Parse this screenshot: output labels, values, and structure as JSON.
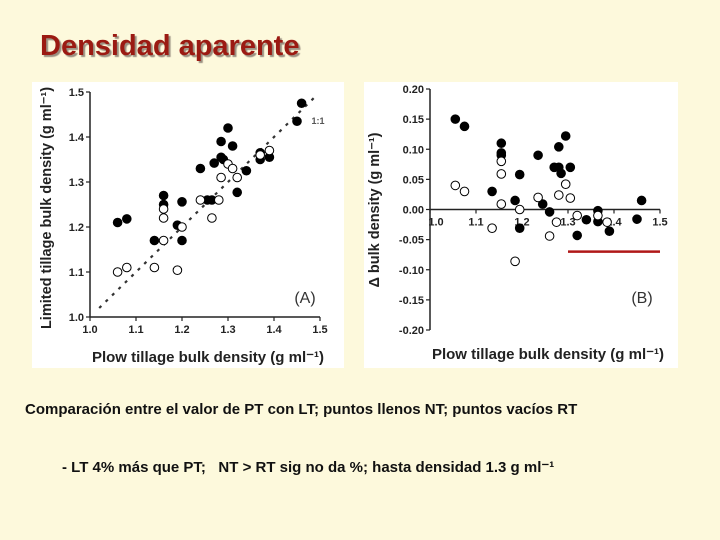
{
  "slide": {
    "title": "Densidad aparente",
    "caption_line1": "Comparación entre el valor de PT con LT; puntos llenos NT; puntos vacíos RT",
    "caption_line2": "- LT 4% más que PT;   NT > RT sig no da %; hasta densidad 1.3 g ml⁻¹"
  },
  "colors": {
    "title": "#9b1a12",
    "background": "#fdf9dc",
    "highlight_line": "#b01818",
    "points": "#000000"
  },
  "chart_data": [
    {
      "type": "scatter",
      "panel_label": "(A)",
      "xlabel": "Plow tillage bulk density (g ml⁻¹)",
      "ylabel": "Limited tillage bulk density (g ml⁻¹)",
      "xlim": [
        1.0,
        1.5
      ],
      "ylim": [
        1.0,
        1.5
      ],
      "xticks": [
        "1.0",
        "1.1",
        "1.2",
        "1.3",
        "1.4",
        "1.5"
      ],
      "yticks": [
        "1.0",
        "1.1",
        "1.2",
        "1.3",
        "1.4",
        "1.5"
      ],
      "reference_line": {
        "label": "1:1",
        "style": "dashed",
        "from": [
          1.02,
          1.02
        ],
        "to": [
          1.49,
          1.49
        ]
      },
      "series": [
        {
          "marker": "filled",
          "points": [
            [
              1.06,
              1.21
            ],
            [
              1.08,
              1.218
            ],
            [
              1.14,
              1.17
            ],
            [
              1.16,
              1.27
            ],
            [
              1.16,
              1.25
            ],
            [
              1.19,
              1.204
            ],
            [
              1.2,
              1.256
            ],
            [
              1.2,
              1.17
            ],
            [
              1.24,
              1.33
            ],
            [
              1.255,
              1.26
            ],
            [
              1.265,
              1.26
            ],
            [
              1.27,
              1.342
            ],
            [
              1.285,
              1.39
            ],
            [
              1.285,
              1.355
            ],
            [
              1.29,
              1.35
            ],
            [
              1.3,
              1.42
            ],
            [
              1.31,
              1.38
            ],
            [
              1.32,
              1.277
            ],
            [
              1.34,
              1.325
            ],
            [
              1.37,
              1.365
            ],
            [
              1.37,
              1.35
            ],
            [
              1.39,
              1.355
            ],
            [
              1.45,
              1.435
            ],
            [
              1.46,
              1.475
            ]
          ]
        },
        {
          "marker": "open",
          "points": [
            [
              1.06,
              1.1
            ],
            [
              1.08,
              1.11
            ],
            [
              1.14,
              1.11
            ],
            [
              1.16,
              1.22
            ],
            [
              1.16,
              1.24
            ],
            [
              1.16,
              1.17
            ],
            [
              1.19,
              1.104
            ],
            [
              1.2,
              1.2
            ],
            [
              1.24,
              1.26
            ],
            [
              1.265,
              1.22
            ],
            [
              1.28,
              1.26
            ],
            [
              1.285,
              1.31
            ],
            [
              1.3,
              1.34
            ],
            [
              1.31,
              1.33
            ],
            [
              1.32,
              1.31
            ],
            [
              1.37,
              1.36
            ],
            [
              1.39,
              1.37
            ]
          ]
        }
      ]
    },
    {
      "type": "scatter",
      "panel_label": "(B)",
      "xlabel": "Plow tillage bulk density (g ml⁻¹)",
      "ylabel": "Δ bulk density (g ml⁻¹)",
      "xlim": [
        1.0,
        1.5
      ],
      "ylim": [
        -0.2,
        0.2
      ],
      "xticks": [
        "1.0",
        "1.1",
        "1.2",
        "1.3",
        "1.4",
        "1.5"
      ],
      "yticks": [
        "0.20",
        "0.15",
        "0.10",
        "0.05",
        "0.00",
        "-0.05",
        "-0.10",
        "-0.15",
        "-0.20"
      ],
      "highlight_segment": {
        "from": [
          1.3,
          -0.07
        ],
        "to": [
          1.5,
          -0.07
        ]
      },
      "series": [
        {
          "marker": "filled",
          "points": [
            [
              1.055,
              0.15
            ],
            [
              1.075,
              0.138
            ],
            [
              1.135,
              0.03
            ],
            [
              1.155,
              0.11
            ],
            [
              1.155,
              0.094
            ],
            [
              1.155,
              0.09
            ],
            [
              1.185,
              0.015
            ],
            [
              1.195,
              0.058
            ],
            [
              1.195,
              -0.031
            ],
            [
              1.235,
              0.09
            ],
            [
              1.245,
              0.009
            ],
            [
              1.26,
              -0.004
            ],
            [
              1.27,
              0.07
            ],
            [
              1.28,
              0.104
            ],
            [
              1.28,
              0.07
            ],
            [
              1.285,
              0.06
            ],
            [
              1.295,
              0.122
            ],
            [
              1.305,
              0.07
            ],
            [
              1.32,
              -0.043
            ],
            [
              1.34,
              -0.017
            ],
            [
              1.365,
              -0.002
            ],
            [
              1.365,
              -0.02
            ],
            [
              1.39,
              -0.036
            ],
            [
              1.45,
              -0.016
            ],
            [
              1.46,
              0.015
            ]
          ]
        },
        {
          "marker": "open",
          "points": [
            [
              1.055,
              0.04
            ],
            [
              1.075,
              0.03
            ],
            [
              1.135,
              -0.031
            ],
            [
              1.155,
              0.08
            ],
            [
              1.155,
              0.059
            ],
            [
              1.155,
              0.009
            ],
            [
              1.185,
              -0.086
            ],
            [
              1.195,
              0.0
            ],
            [
              1.235,
              0.02
            ],
            [
              1.26,
              -0.044
            ],
            [
              1.275,
              -0.021
            ],
            [
              1.28,
              0.024
            ],
            [
              1.295,
              0.042
            ],
            [
              1.305,
              0.019
            ],
            [
              1.32,
              -0.01
            ],
            [
              1.365,
              -0.01
            ],
            [
              1.385,
              -0.021
            ]
          ]
        }
      ]
    }
  ]
}
